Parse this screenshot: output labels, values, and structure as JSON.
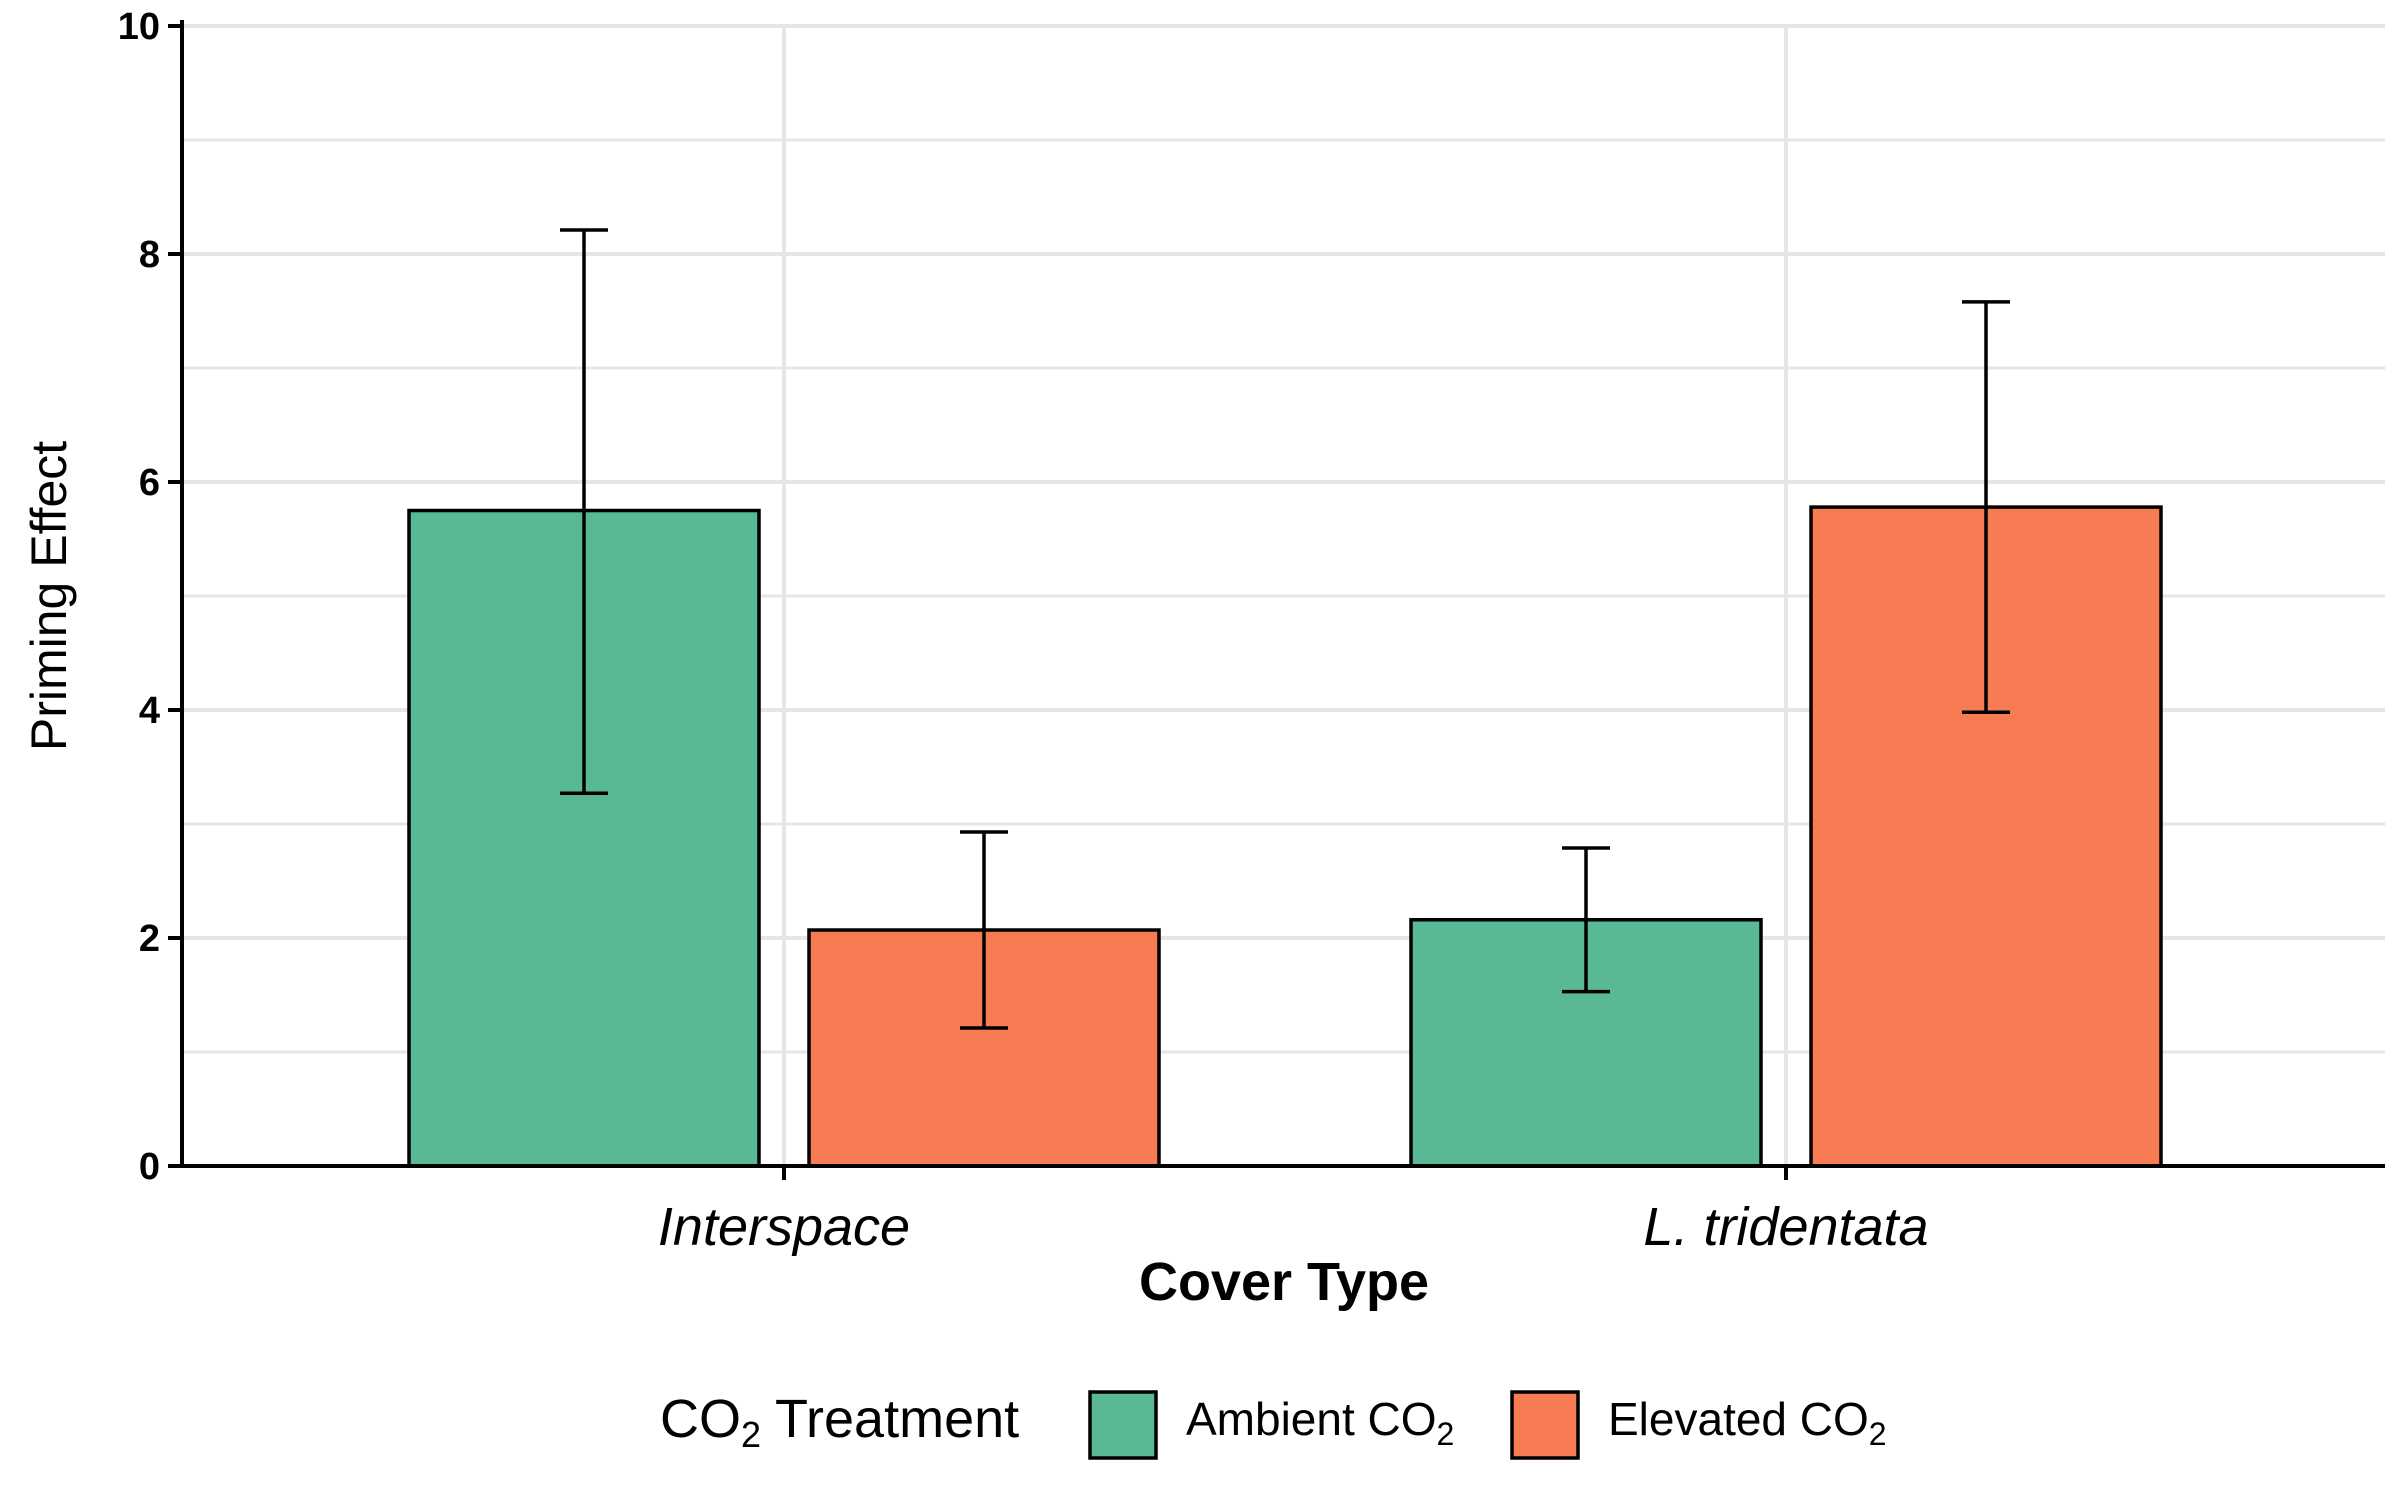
{
  "chart_data": {
    "type": "bar",
    "xlabel": "Cover Type",
    "ylabel": "Priming Effect",
    "ylim": [
      0,
      10
    ],
    "yticks": [
      0,
      2,
      4,
      6,
      8,
      10
    ],
    "categories": [
      "Interspace",
      "L. tridentata"
    ],
    "grid": true,
    "legend": {
      "placement": "bottom",
      "title_main": "CO",
      "title_sub": "2",
      "title_rest": " Treatment"
    },
    "series": [
      {
        "name": "Ambient CO2",
        "label_main": "Ambient CO",
        "label_sub": "2",
        "color": "#59b994",
        "values": [
          5.75,
          2.16
        ],
        "error_low": [
          3.27,
          1.53
        ],
        "error_high": [
          8.21,
          2.79
        ]
      },
      {
        "name": "Elevated CO2",
        "label_main": "Elevated CO",
        "label_sub": "2",
        "color": "#f77b53",
        "values": [
          2.07,
          5.78
        ],
        "error_low": [
          1.21,
          3.98
        ],
        "error_high": [
          2.93,
          7.58
        ]
      }
    ]
  }
}
